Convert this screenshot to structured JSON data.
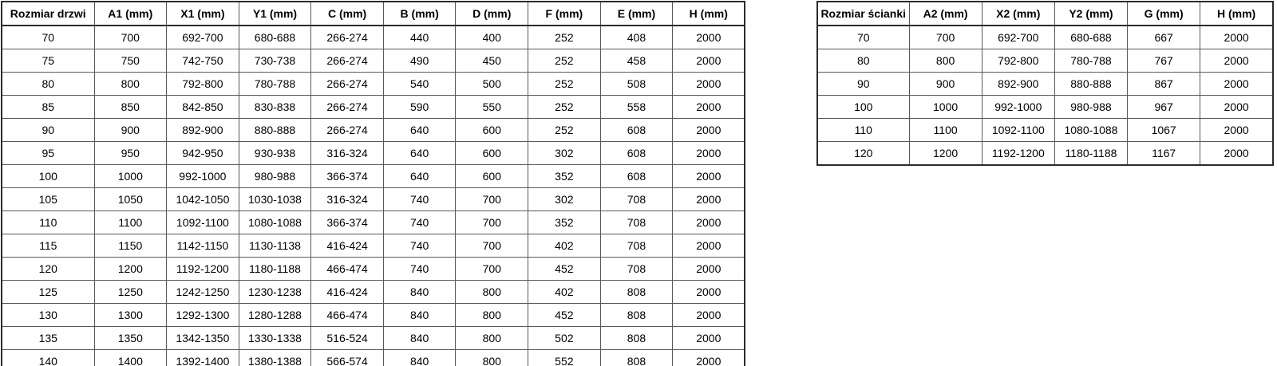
{
  "door_table": {
    "headers": [
      "Rozmiar drzwi",
      "A1 (mm)",
      "X1 (mm)",
      "Y1 (mm)",
      "C (mm)",
      "B (mm)",
      "D (mm)",
      "F (mm)",
      "E (mm)",
      "H (mm)"
    ],
    "rows": [
      [
        "70",
        "700",
        "692-700",
        "680-688",
        "266-274",
        "440",
        "400",
        "252",
        "408",
        "2000"
      ],
      [
        "75",
        "750",
        "742-750",
        "730-738",
        "266-274",
        "490",
        "450",
        "252",
        "458",
        "2000"
      ],
      [
        "80",
        "800",
        "792-800",
        "780-788",
        "266-274",
        "540",
        "500",
        "252",
        "508",
        "2000"
      ],
      [
        "85",
        "850",
        "842-850",
        "830-838",
        "266-274",
        "590",
        "550",
        "252",
        "558",
        "2000"
      ],
      [
        "90",
        "900",
        "892-900",
        "880-888",
        "266-274",
        "640",
        "600",
        "252",
        "608",
        "2000"
      ],
      [
        "95",
        "950",
        "942-950",
        "930-938",
        "316-324",
        "640",
        "600",
        "302",
        "608",
        "2000"
      ],
      [
        "100",
        "1000",
        "992-1000",
        "980-988",
        "366-374",
        "640",
        "600",
        "352",
        "608",
        "2000"
      ],
      [
        "105",
        "1050",
        "1042-1050",
        "1030-1038",
        "316-324",
        "740",
        "700",
        "302",
        "708",
        "2000"
      ],
      [
        "110",
        "1100",
        "1092-1100",
        "1080-1088",
        "366-374",
        "740",
        "700",
        "352",
        "708",
        "2000"
      ],
      [
        "115",
        "1150",
        "1142-1150",
        "1130-1138",
        "416-424",
        "740",
        "700",
        "402",
        "708",
        "2000"
      ],
      [
        "120",
        "1200",
        "1192-1200",
        "1180-1188",
        "466-474",
        "740",
        "700",
        "452",
        "708",
        "2000"
      ],
      [
        "125",
        "1250",
        "1242-1250",
        "1230-1238",
        "416-424",
        "840",
        "800",
        "402",
        "808",
        "2000"
      ],
      [
        "130",
        "1300",
        "1292-1300",
        "1280-1288",
        "466-474",
        "840",
        "800",
        "452",
        "808",
        "2000"
      ],
      [
        "135",
        "1350",
        "1342-1350",
        "1330-1338",
        "516-524",
        "840",
        "800",
        "502",
        "808",
        "2000"
      ],
      [
        "140",
        "1400",
        "1392-1400",
        "1380-1388",
        "566-574",
        "840",
        "800",
        "552",
        "808",
        "2000"
      ]
    ]
  },
  "wall_table": {
    "headers": [
      "Rozmiar ścianki",
      "A2 (mm)",
      "X2 (mm)",
      "Y2 (mm)",
      "G (mm)",
      "H (mm)"
    ],
    "rows": [
      [
        "70",
        "700",
        "692-700",
        "680-688",
        "667",
        "2000"
      ],
      [
        "80",
        "800",
        "792-800",
        "780-788",
        "767",
        "2000"
      ],
      [
        "90",
        "900",
        "892-900",
        "880-888",
        "867",
        "2000"
      ],
      [
        "100",
        "1000",
        "992-1000",
        "980-988",
        "967",
        "2000"
      ],
      [
        "110",
        "1100",
        "1092-1100",
        "1080-1088",
        "1067",
        "2000"
      ],
      [
        "120",
        "1200",
        "1192-1200",
        "1180-1188",
        "1167",
        "2000"
      ]
    ]
  },
  "colors": {
    "background": "#ffffff",
    "text": "#000000",
    "outer_border": "#2b2b2b",
    "inner_border": "#595959"
  }
}
